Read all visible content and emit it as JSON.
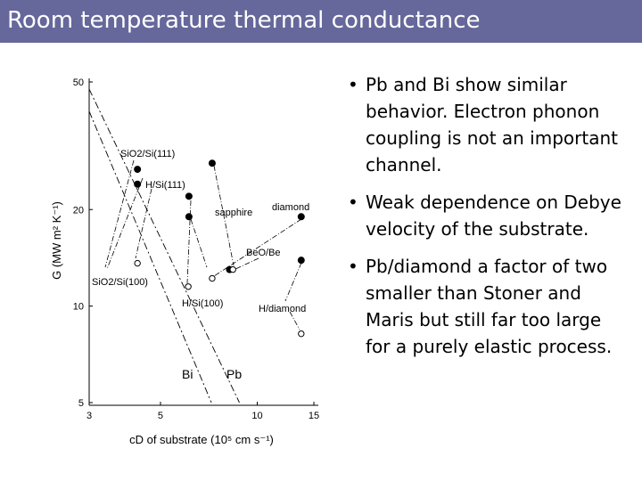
{
  "slide": {
    "title": "Room temperature thermal conductance",
    "bullets": [
      "Pb and Bi show similar behavior.  Electron phonon coupling is not an important channel.",
      "Weak dependence on Debye velocity of the substrate.",
      "Pb/diamond a factor of two smaller than Stoner and Maris but still far too large for a purely elastic process."
    ]
  },
  "chart_data": {
    "type": "scatter",
    "xlabel": "cD of substrate (10⁵ cm s⁻¹)",
    "ylabel": "G (MW m² K⁻¹)",
    "xscale": "log",
    "yscale": "log",
    "xlim": [
      3,
      15
    ],
    "ylim": [
      5,
      50
    ],
    "xticks": [
      3,
      5,
      10,
      15
    ],
    "yticks": [
      5,
      10,
      20,
      50
    ],
    "series": [
      {
        "marker": "filled",
        "color": "#000000",
        "x": [
          4.24,
          4.24,
          6.13,
          6.13,
          7.24,
          13.7,
          13.7,
          8.2
        ],
        "values": [
          26.7,
          24,
          22,
          19,
          27.9,
          19,
          13.9,
          13
        ]
      },
      {
        "marker": "open",
        "color": "#000000",
        "x": [
          4.24,
          6.1,
          7.24,
          8.4,
          13.7
        ],
        "values": [
          13.6,
          11.5,
          12.2,
          13,
          8.2
        ]
      }
    ],
    "lines": [
      {
        "label": "Bi",
        "x": [
          3,
          7.2
        ],
        "values": [
          40.5,
          5
        ]
      },
      {
        "label": "Pb",
        "x": [
          3,
          8.8
        ],
        "values": [
          47.5,
          5
        ]
      }
    ],
    "annotations": [
      "SiO2/Si(111)",
      "H/Si(111)",
      "sapphire",
      "diamond",
      "BeO/Be",
      "SiO2/Si(100)",
      "H/Si(100)",
      "H/diamond"
    ]
  }
}
